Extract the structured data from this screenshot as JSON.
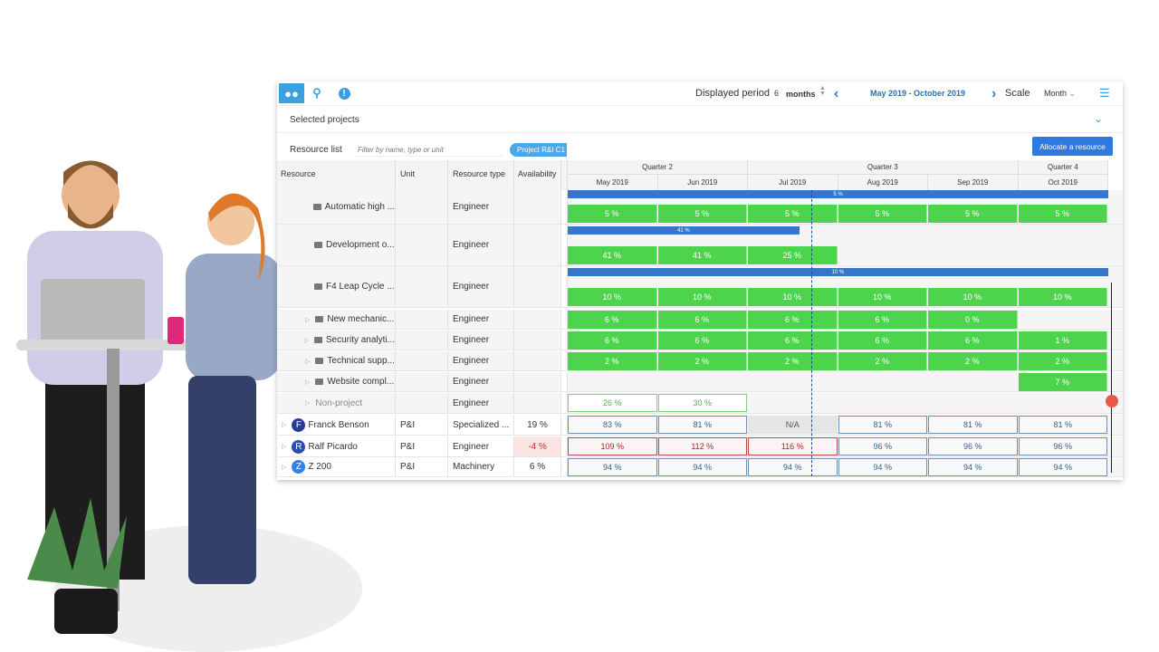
{
  "toolbar": {
    "icons": [
      "users-icon",
      "search-zoom-icon",
      "alert-icon"
    ],
    "displayed_period_label": "Displayed period",
    "period_value": "6",
    "period_unit": "months",
    "range": "May 2019  - October 2019",
    "scale_label": "Scale",
    "scale_value": "Month",
    "accent": "#3aa0e0"
  },
  "selected_projects": {
    "label": "Selected projects"
  },
  "resource_list": {
    "label": "Resource list",
    "filter_placeholder": "Filter by name, type or unit",
    "project_chip": "Project R&I C1",
    "allocate_button": "Allocate a resource"
  },
  "columns": {
    "resource": "Resource",
    "unit": "Unit",
    "type": "Resource type",
    "availability": "Availability"
  },
  "quarters": [
    "Quarter 2",
    "Quarter 3",
    "Quarter 4"
  ],
  "months": [
    "May 2019",
    "Jun 2019",
    "Jul 2019",
    "Aug 2019",
    "Sep 2019",
    "Oct 2019"
  ],
  "rows": [
    {
      "name": "Automatic high ...",
      "kind": "project",
      "type": "Engineer",
      "bar": "5 %",
      "cells": [
        "5 %",
        "5 %",
        "5 %",
        "5 %",
        "5 %",
        "5 %"
      ],
      "style": "g"
    },
    {
      "name": "Development o...",
      "kind": "project",
      "type": "Engineer",
      "bar": "41 %",
      "cells": [
        "41 %",
        "41 %",
        "25 %",
        null,
        null,
        null
      ],
      "style": "g"
    },
    {
      "name": "F4 Leap Cycle ...",
      "kind": "project",
      "type": "Engineer",
      "bar": "10 %",
      "cells": [
        "10 %",
        "10 %",
        "10 %",
        "10 %",
        "10 %",
        "10 %"
      ],
      "style": "g"
    },
    {
      "name": "New mechanic...",
      "kind": "project-expand",
      "type": "Engineer",
      "cells": [
        "6 %",
        "6 %",
        "6 %",
        "6 %",
        "0 %",
        null
      ],
      "style": "g"
    },
    {
      "name": "Security analyti...",
      "kind": "project-expand",
      "type": "Engineer",
      "cells": [
        "6 %",
        "6 %",
        "6 %",
        "6 %",
        "6 %",
        "1 %"
      ],
      "style": "g"
    },
    {
      "name": "Technical supp...",
      "kind": "project-expand",
      "type": "Engineer",
      "cells": [
        "2 %",
        "2 %",
        "2 %",
        "2 %",
        "2 %",
        "2 %"
      ],
      "style": "g"
    },
    {
      "name": "Website compl...",
      "kind": "project-expand",
      "type": "Engineer",
      "cells": [
        null,
        null,
        null,
        null,
        null,
        "7 %"
      ],
      "style": "g"
    },
    {
      "name": "Non-project",
      "kind": "nonproject",
      "type": "Engineer",
      "cells": [
        "26 %",
        "30 %",
        null,
        null,
        null,
        null
      ],
      "style": "go"
    },
    {
      "name": "Franck Benson",
      "kind": "person",
      "initial": "F",
      "avatar_color": "#2a3a9a",
      "unit": "P&I",
      "type": "Specialized ...",
      "availability": "19 %",
      "cells": [
        "83 %",
        "81 %",
        "N/A",
        "81 %",
        "81 %",
        "81 %"
      ],
      "style": "bo"
    },
    {
      "name": "Ralf Picardo",
      "kind": "person",
      "initial": "R",
      "avatar_color": "#2d4fa8",
      "unit": "P&I",
      "type": "Engineer",
      "availability": "-4 %",
      "availability_negative": true,
      "cells": [
        "109 %",
        "112 %",
        "116 %",
        "96 %",
        "96 %",
        "96 %"
      ],
      "style": "bo",
      "over": [
        0,
        1,
        2
      ]
    },
    {
      "name": "Z 200",
      "kind": "person",
      "initial": "Z",
      "avatar_color": "#3a7fe0",
      "unit": "P&I",
      "type": "Machinery",
      "availability": "6 %",
      "cells": [
        "94 %",
        "94 %",
        "94 %",
        "94 %",
        "94 %",
        "94 %"
      ],
      "style": "bo"
    }
  ]
}
